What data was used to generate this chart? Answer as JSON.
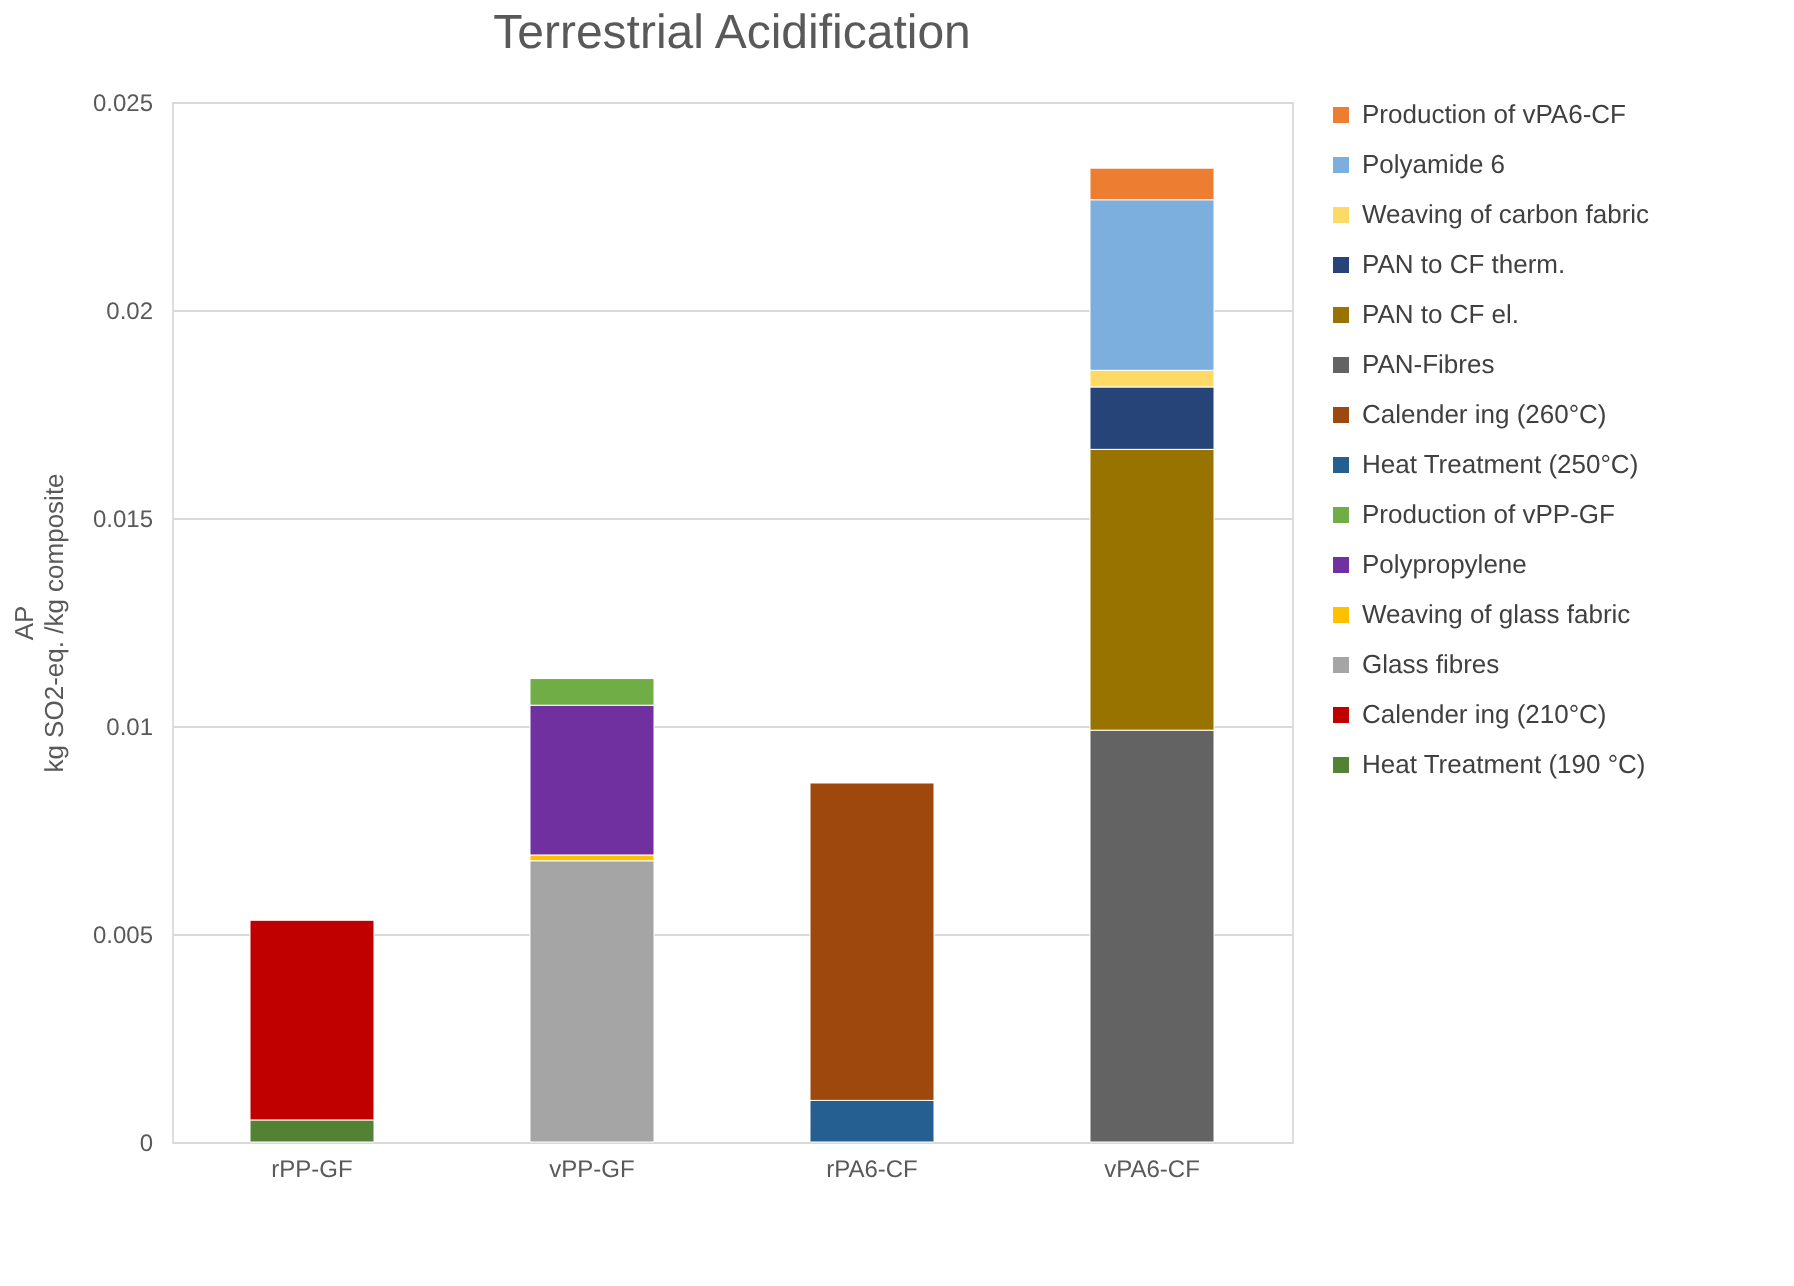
{
  "chart_data": {
    "type": "bar",
    "title": "Terrestrial  Acidification",
    "ylabel": "AP\nkg SO2-eq. /kg composite",
    "stacked": true,
    "categories": [
      "rPP-GF",
      "vPP-GF",
      "rPA6-CF",
      "vPA6-CF"
    ],
    "ylim": [
      0,
      0.025
    ],
    "yticks": [
      0,
      0.005,
      0.01,
      0.015,
      0.02,
      0.025
    ],
    "grid": "y",
    "legend": "right",
    "series": [
      {
        "name": "Heat Treatment (190 °C)",
        "color": "#548235",
        "values": [
          0.00053,
          null,
          null,
          null
        ]
      },
      {
        "name": "Calender ing (210°C)",
        "color": "#c00000",
        "values": [
          0.0048,
          null,
          null,
          null
        ]
      },
      {
        "name": "Glass fibres",
        "color": "#a5a5a5",
        "values": [
          null,
          0.00676,
          null,
          null
        ]
      },
      {
        "name": "Weaving of glass fabric",
        "color": "#ffc000",
        "values": [
          null,
          0.00014,
          null,
          null
        ]
      },
      {
        "name": "Polypropylene",
        "color": "#7030a0",
        "values": [
          null,
          0.0036,
          null,
          null
        ]
      },
      {
        "name": "Production of vPP-GF",
        "color": "#70ad47",
        "values": [
          null,
          0.00064,
          null,
          null
        ]
      },
      {
        "name": "Heat Treatment (250°C)",
        "color": "#255e91",
        "values": [
          null,
          null,
          0.001,
          null
        ]
      },
      {
        "name": "Calender ing (260°C)",
        "color": "#9e480e",
        "values": [
          null,
          null,
          0.00763,
          null
        ]
      },
      {
        "name": "PAN-Fibres",
        "color": "#636363",
        "values": [
          null,
          null,
          null,
          0.0099
        ]
      },
      {
        "name": "PAN to CF el.",
        "color": "#997300",
        "values": [
          null,
          null,
          null,
          0.00675
        ]
      },
      {
        "name": "PAN to CF therm.",
        "color": "#264478",
        "values": [
          null,
          null,
          null,
          0.0015
        ]
      },
      {
        "name": "Weaving of carbon fabric",
        "color": "#ffd966",
        "values": [
          null,
          null,
          null,
          0.0004
        ]
      },
      {
        "name": "Polyamide 6",
        "color": "#7cafdd",
        "values": [
          null,
          null,
          null,
          0.0041
        ]
      },
      {
        "name": "Production of vPA6-CF",
        "color": "#ed7d31",
        "values": [
          null,
          null,
          null,
          0.00076
        ]
      }
    ]
  }
}
